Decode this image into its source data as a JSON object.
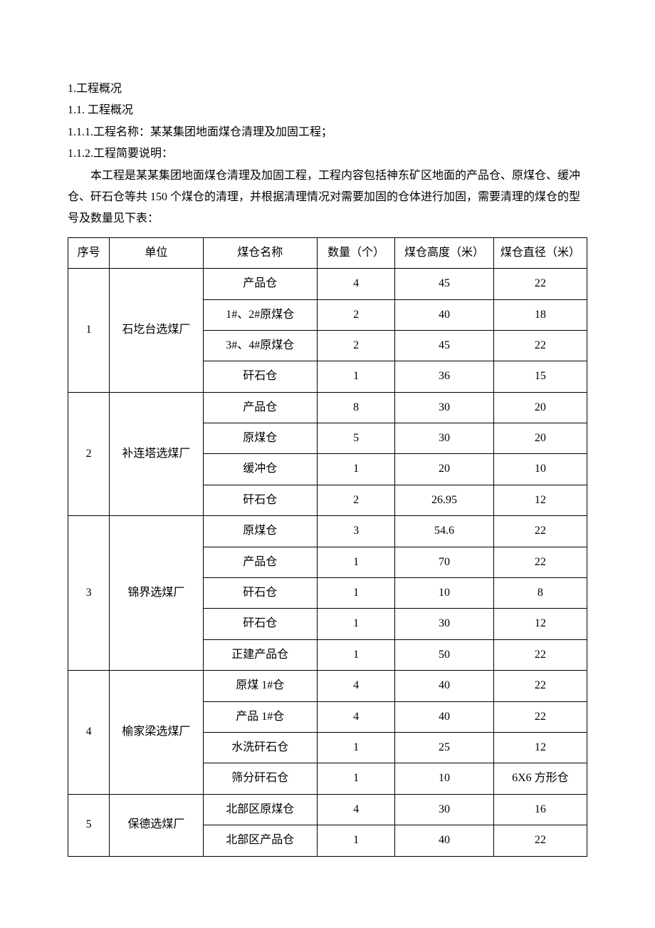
{
  "heading1": "1.工程概况",
  "heading11": "1.1. 工程概况",
  "heading111": "1.1.1.工程名称：某某集团地面煤仓清理及加固工程；",
  "heading112": "1.1.2.工程简要说明：",
  "para": "本工程是某某集团地面煤仓清理及加固工程，工程内容包括神东矿区地面的产品仓、原煤仓、缓冲仓、矸石仓等共 150 个煤仓的清理，并根据清理情况对需要加固的仓体进行加固，需要清理的煤仓的型号及数量见下表：",
  "table": {
    "columns": [
      "序号",
      "单位",
      "煤仓名称",
      "数量（个）",
      "煤仓高度（米）",
      "煤仓直径（米）"
    ],
    "col_widths_pct": [
      8,
      18,
      22,
      15,
      19,
      18
    ],
    "border_color": "#000000",
    "font_family": "SimSun",
    "header_fontsize": 16,
    "cell_fontsize": 16,
    "groups": [
      {
        "id": "1",
        "unit": "石圪台选煤厂",
        "rows": [
          {
            "name": "产品仓",
            "qty": "4",
            "height": "45",
            "diameter": "22"
          },
          {
            "name": "1#、2#原煤仓",
            "qty": "2",
            "height": "40",
            "diameter": "18"
          },
          {
            "name": "3#、4#原煤仓",
            "qty": "2",
            "height": "45",
            "diameter": "22"
          },
          {
            "name": "矸石仓",
            "qty": "1",
            "height": "36",
            "diameter": "15"
          }
        ]
      },
      {
        "id": "2",
        "unit": "补连塔选煤厂",
        "rows": [
          {
            "name": "产品仓",
            "qty": "8",
            "height": "30",
            "diameter": "20"
          },
          {
            "name": "原煤仓",
            "qty": "5",
            "height": "30",
            "diameter": "20"
          },
          {
            "name": "缓冲仓",
            "qty": "1",
            "height": "20",
            "diameter": "10"
          },
          {
            "name": "矸石仓",
            "qty": "2",
            "height": "26.95",
            "diameter": "12"
          }
        ]
      },
      {
        "id": "3",
        "unit": "锦界选煤厂",
        "rows": [
          {
            "name": "原煤仓",
            "qty": "3",
            "height": "54.6",
            "diameter": "22"
          },
          {
            "name": "产品仓",
            "qty": "1",
            "height": "70",
            "diameter": "22"
          },
          {
            "name": "矸石仓",
            "qty": "1",
            "height": "10",
            "diameter": "8"
          },
          {
            "name": "矸石仓",
            "qty": "1",
            "height": "30",
            "diameter": "12"
          },
          {
            "name": "正建产品仓",
            "qty": "1",
            "height": "50",
            "diameter": "22"
          }
        ]
      },
      {
        "id": "4",
        "unit": "榆家梁选煤厂",
        "rows": [
          {
            "name": "原煤 1#仓",
            "qty": "4",
            "height": "40",
            "diameter": "22"
          },
          {
            "name": "产品 1#仓",
            "qty": "4",
            "height": "40",
            "diameter": "22"
          },
          {
            "name": "水洗矸石仓",
            "qty": "1",
            "height": "25",
            "diameter": "12"
          },
          {
            "name": "筛分矸石仓",
            "qty": "1",
            "height": "10",
            "diameter": "6X6 方形仓"
          }
        ]
      },
      {
        "id": "5",
        "unit": "保德选煤厂",
        "rows": [
          {
            "name": "北部区原煤仓",
            "qty": "4",
            "height": "30",
            "diameter": "16"
          },
          {
            "name": "北部区产品仓",
            "qty": "1",
            "height": "40",
            "diameter": "22"
          }
        ]
      }
    ]
  }
}
